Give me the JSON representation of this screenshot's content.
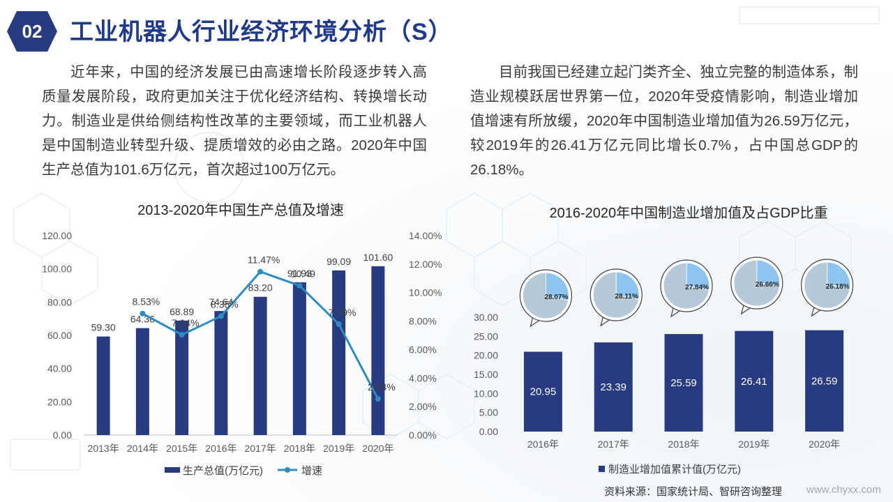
{
  "badge": "02",
  "title": "工业机器人行业经济环境分析（S）",
  "paragraph_left": "近年来，中国的经济发展已由高速增长阶段逐步转入高质量发展阶段，政府更加关注于优化经济结构、转换增长动力。制造业是供给侧结构性改革的主要领域，而工业机器人是中国制造业转型升级、提质增效的必由之路。2020年中国生产总值为101.6万亿元，首次超过100万亿元。",
  "paragraph_right": "目前我国已经建立起门类齐全、独立完整的制造体系，制造业规模跃居世界第一位，2020年受疫情影响，制造业增加值增速有所放缓，2020年中国制造业增加值为26.59万亿元，较2019年的26.41万亿元同比增长0.7%，占中国总GDP的26.18%。",
  "source": "资料来源：国家统计局、智研咨询整理",
  "website": "www.chyxx.com",
  "colors": {
    "bar": "#283a80",
    "line": "#2e8bc0",
    "pie_main": "#b5c9d8",
    "pie_slice": "#8ec5f0",
    "title": "#1f3a8a"
  },
  "chart_data": [
    {
      "type": "bar+line",
      "title": "2013-2020年中国生产总值及增速",
      "categories": [
        "2013年",
        "2014年",
        "2015年",
        "2016年",
        "2017年",
        "2018年",
        "2019年",
        "2020年"
      ],
      "category_labels": [
        "2013年",
        "2014年",
        "2015年",
        "2016年",
        "2017年",
        "2018年",
        "2019年",
        "2020年"
      ],
      "series": [
        {
          "name": "生产总值(万亿元)",
          "type": "bar",
          "axis": "left",
          "values": [
            59.3,
            64.36,
            68.89,
            74.64,
            83.2,
            91.93,
            99.09,
            101.6
          ],
          "labels": [
            "59.30",
            "64.36",
            "68.89",
            "74.64",
            "83.20",
            "91.93",
            "99.09",
            "101.60"
          ]
        },
        {
          "name": "增速",
          "type": "line",
          "axis": "right",
          "values": [
            null,
            8.53,
            7.04,
            8.35,
            11.47,
            10.49,
            7.79,
            2.54
          ],
          "labels": [
            "",
            "8.53%",
            "7.04%",
            "8.35%",
            "11.47%",
            "10.49",
            "7.79%",
            "2.54%"
          ]
        }
      ],
      "y_left": {
        "min": 0,
        "max": 120,
        "ticks": [
          "0.00",
          "20.00",
          "40.00",
          "60.00",
          "80.00",
          "100.00",
          "120.00"
        ]
      },
      "y_right": {
        "min": 0,
        "max": 14,
        "ticks": [
          "0.00%",
          "2.00%",
          "4.00%",
          "6.00%",
          "8.00%",
          "10.00%",
          "12.00%",
          "14.00%"
        ]
      },
      "legend": {
        "position": "bottom",
        "entries": [
          "生产总值(万亿元)",
          "增速"
        ]
      },
      "grid": false
    },
    {
      "type": "bar+pie",
      "title": "2016-2020年中国制造业增加值及占GDP比重",
      "categories": [
        "2016年",
        "2017年",
        "2018年",
        "2019年",
        "2020年"
      ],
      "category_labels": [
        "2016年",
        "2017年",
        "2018年",
        "2019年",
        "2020年"
      ],
      "series": [
        {
          "name": "制造业增加值累计值(万亿元)",
          "type": "bar",
          "values": [
            20.95,
            23.39,
            25.59,
            26.41,
            26.59
          ],
          "labels": [
            "20.95",
            "23.39",
            "25.59",
            "26.41",
            "26.59"
          ]
        }
      ],
      "gdp_share": {
        "values": [
          28.07,
          28.11,
          27.84,
          26.66,
          26.18
        ],
        "labels": [
          "28.07%",
          "28.11%",
          "27.84%",
          "26.66%",
          "26.18%"
        ]
      },
      "y": {
        "min": 0,
        "max": 30,
        "ticks": [
          "0.00",
          "5.00",
          "10.00",
          "15.00",
          "20.00",
          "25.00",
          "30.00"
        ]
      },
      "legend": {
        "position": "bottom",
        "entries": [
          "制造业增加值累计值(万亿元)"
        ]
      },
      "grid": false
    }
  ]
}
